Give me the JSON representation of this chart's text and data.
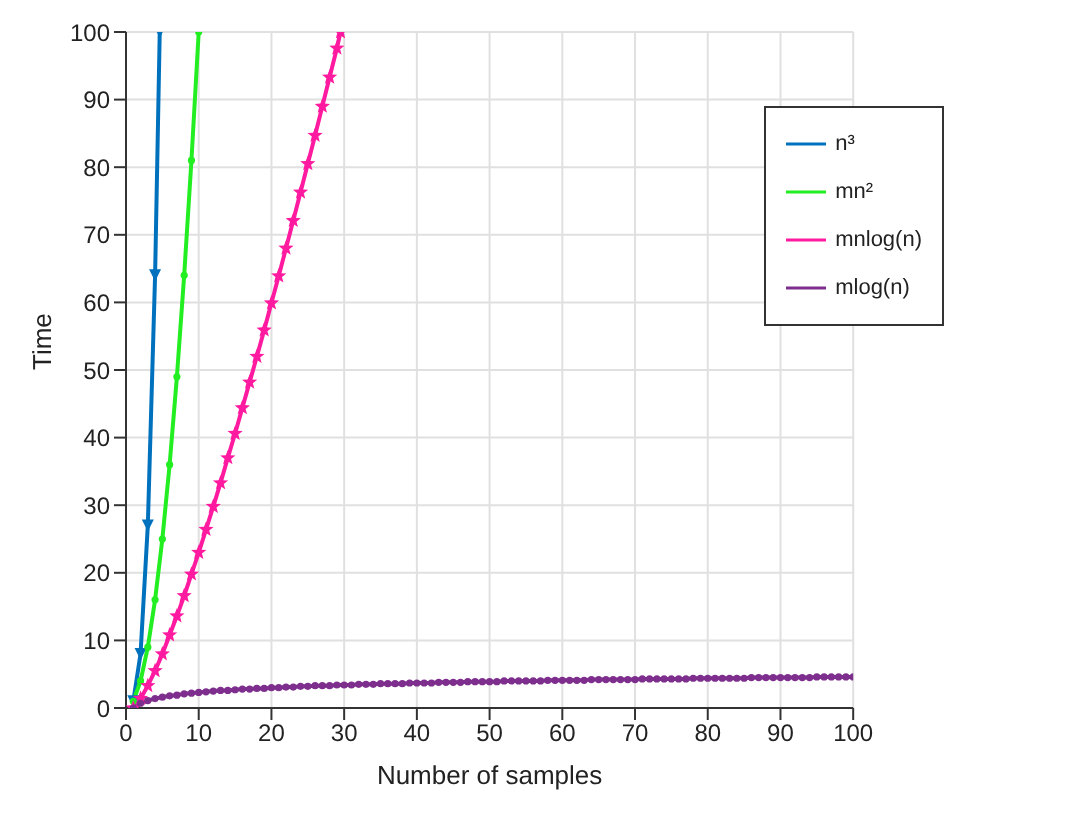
{
  "chart_data": {
    "type": "line",
    "xlabel": "Number of samples",
    "ylabel": "Time",
    "xlim": [
      0,
      100
    ],
    "ylim": [
      0,
      100
    ],
    "xticks": [
      0,
      10,
      20,
      30,
      40,
      50,
      60,
      70,
      80,
      90,
      100
    ],
    "yticks": [
      0,
      10,
      20,
      30,
      40,
      50,
      60,
      70,
      80,
      90,
      100
    ],
    "grid": true,
    "legend": "top right",
    "series": [
      {
        "name": "n³",
        "color": "#0072bd",
        "marker": "triangle",
        "x": [
          1,
          2,
          3,
          4,
          4.64
        ],
        "values": [
          1,
          8,
          27,
          64,
          100
        ]
      },
      {
        "name": "mn²",
        "color": "#22ee22",
        "marker": "circle",
        "x": [
          1,
          2,
          3,
          4,
          5,
          6,
          7,
          8,
          9,
          10
        ],
        "values": [
          1,
          4,
          9,
          16,
          25,
          36,
          49,
          64,
          81,
          100
        ]
      },
      {
        "name": "mnlog(n)",
        "color": "#ff1aa0",
        "marker": "star",
        "x": [
          1,
          2,
          3,
          4,
          5,
          6,
          7,
          8,
          9,
          10,
          11,
          12,
          13,
          14,
          15,
          16,
          17,
          18,
          19,
          20,
          21,
          22,
          23,
          24,
          25,
          26,
          27,
          28,
          29,
          29.5
        ],
        "values": [
          0,
          1.4,
          3.3,
          5.5,
          8,
          10.8,
          13.6,
          16.6,
          19.8,
          23,
          26.4,
          29.8,
          33.3,
          37,
          40.6,
          44.4,
          48.2,
          52,
          55.9,
          59.9,
          63.9,
          68,
          72.1,
          76.3,
          80.5,
          84.7,
          89,
          93.3,
          97.6,
          100
        ]
      },
      {
        "name": "mlog(n)",
        "color": "#7e2f8e",
        "marker": "circle",
        "x": [
          1,
          2,
          3,
          4,
          5,
          6,
          7,
          8,
          9,
          10,
          11,
          12,
          13,
          14,
          15,
          16,
          17,
          18,
          19,
          20,
          21,
          22,
          23,
          24,
          25,
          26,
          27,
          28,
          29,
          30,
          31,
          32,
          33,
          34,
          35,
          36,
          37,
          38,
          39,
          40,
          41,
          42,
          43,
          44,
          45,
          46,
          47,
          48,
          49,
          50,
          51,
          52,
          53,
          54,
          55,
          56,
          57,
          58,
          59,
          60,
          61,
          62,
          63,
          64,
          65,
          66,
          67,
          68,
          69,
          70,
          71,
          72,
          73,
          74,
          75,
          76,
          77,
          78,
          79,
          80,
          81,
          82,
          83,
          84,
          85,
          86,
          87,
          88,
          89,
          90,
          91,
          92,
          93,
          94,
          95,
          96,
          97,
          98,
          99,
          100
        ],
        "values": [
          0,
          0.7,
          1.1,
          1.4,
          1.6,
          1.8,
          1.9,
          2.1,
          2.2,
          2.3,
          2.4,
          2.5,
          2.6,
          2.6,
          2.7,
          2.8,
          2.8,
          2.9,
          2.9,
          3,
          3,
          3.1,
          3.1,
          3.2,
          3.2,
          3.3,
          3.3,
          3.3,
          3.4,
          3.4,
          3.4,
          3.5,
          3.5,
          3.5,
          3.6,
          3.6,
          3.6,
          3.6,
          3.7,
          3.7,
          3.7,
          3.7,
          3.8,
          3.8,
          3.8,
          3.8,
          3.9,
          3.9,
          3.9,
          3.9,
          3.9,
          4,
          4,
          4,
          4,
          4,
          4,
          4.1,
          4.1,
          4.1,
          4.1,
          4.1,
          4.1,
          4.2,
          4.2,
          4.2,
          4.2,
          4.2,
          4.2,
          4.2,
          4.3,
          4.3,
          4.3,
          4.3,
          4.3,
          4.3,
          4.3,
          4.4,
          4.4,
          4.4,
          4.4,
          4.4,
          4.4,
          4.4,
          4.4,
          4.5,
          4.5,
          4.5,
          4.5,
          4.5,
          4.5,
          4.5,
          4.5,
          4.5,
          4.6,
          4.6,
          4.6,
          4.6,
          4.6,
          4.6
        ]
      }
    ]
  }
}
